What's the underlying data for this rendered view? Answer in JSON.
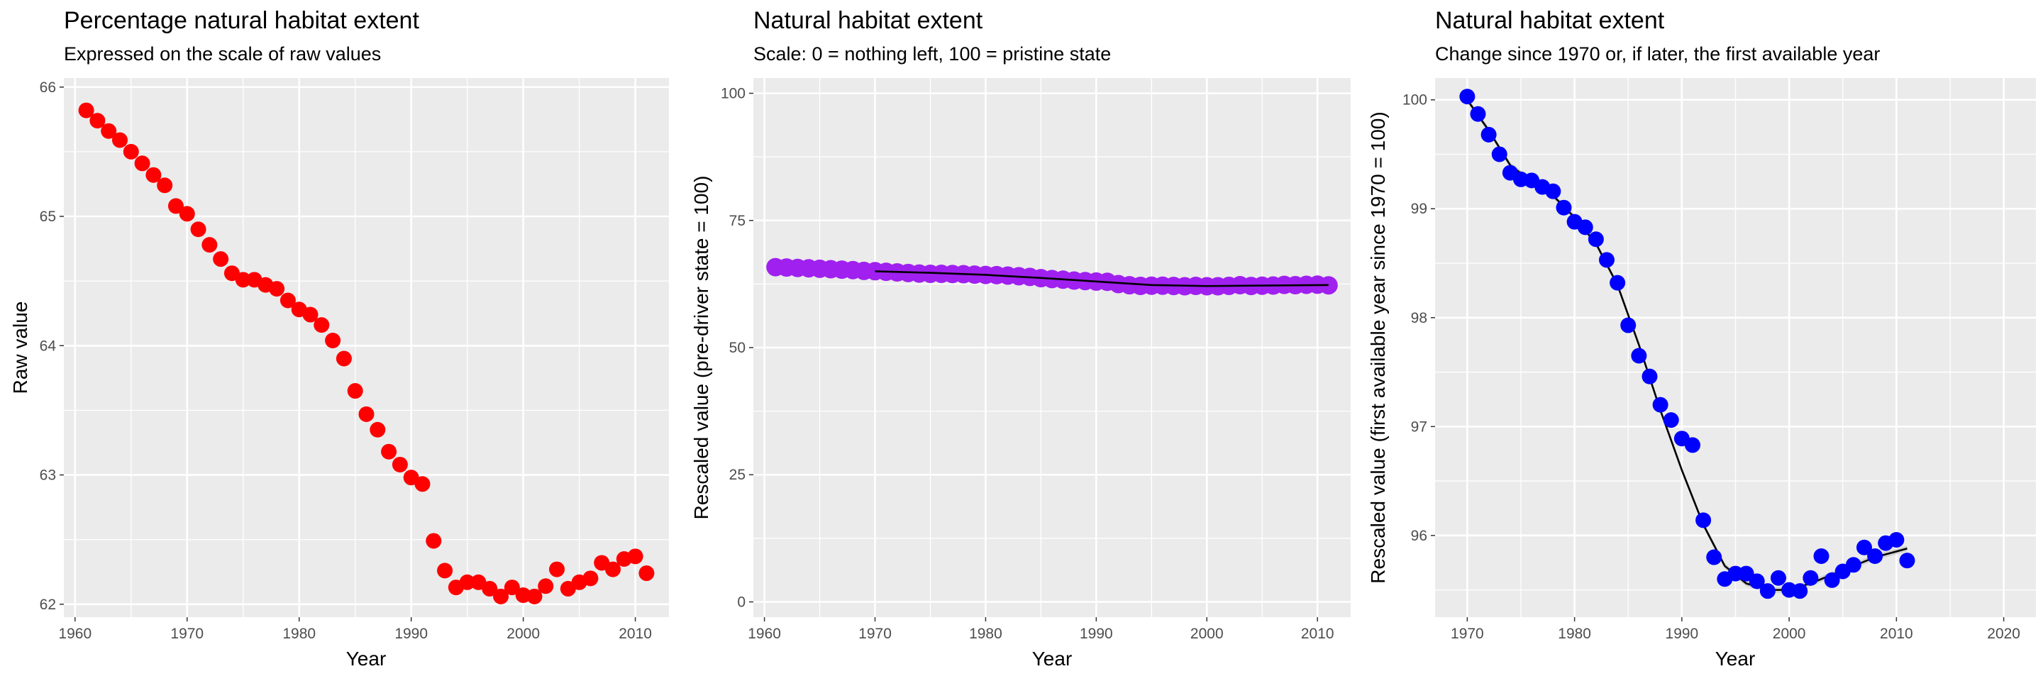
{
  "chart_data": [
    {
      "type": "scatter",
      "title": "Percentage natural habitat extent",
      "subtitle": "Expressed on the scale of raw values",
      "xlabel": "Year",
      "ylabel": "Raw value",
      "xlim": [
        1959,
        2013
      ],
      "ylim": [
        61.9,
        66.07
      ],
      "xticks": [
        1960,
        1970,
        1980,
        1990,
        2000,
        2010
      ],
      "yticks": [
        62,
        63,
        64,
        65,
        66
      ],
      "point_color": "#ff0000",
      "grid": true,
      "panel_background": "#ebebeb",
      "series": [
        {
          "x": [
            1961,
            1962,
            1963,
            1964,
            1965,
            1966,
            1967,
            1968,
            1969,
            1970,
            1971,
            1972,
            1973,
            1974,
            1975,
            1976,
            1977,
            1978,
            1979,
            1980,
            1981,
            1982,
            1983,
            1984,
            1985,
            1986,
            1987,
            1988,
            1989,
            1990,
            1991,
            1992,
            1993,
            1994,
            1995,
            1996,
            1997,
            1998,
            1999,
            2000,
            2001,
            2002,
            2003,
            2004,
            2005,
            2006,
            2007,
            2008,
            2009,
            2010,
            2011
          ],
          "y": [
            65.82,
            65.74,
            65.66,
            65.59,
            65.5,
            65.41,
            65.32,
            65.24,
            65.08,
            65.02,
            64.9,
            64.78,
            64.67,
            64.56,
            64.51,
            64.51,
            64.47,
            64.44,
            64.35,
            64.28,
            64.24,
            64.16,
            64.04,
            63.9,
            63.65,
            63.47,
            63.35,
            63.18,
            63.08,
            62.98,
            62.93,
            62.49,
            62.26,
            62.13,
            62.17,
            62.17,
            62.12,
            62.06,
            62.13,
            62.07,
            62.06,
            62.14,
            62.27,
            62.12,
            62.17,
            62.2,
            62.32,
            62.27,
            62.35,
            62.37,
            62.24
          ]
        }
      ]
    },
    {
      "type": "scatter",
      "title": "Natural habitat extent",
      "subtitle": "Scale: 0 = nothing left, 100 = pristine state",
      "xlabel": "Year",
      "ylabel": "Rescaled value (pre-driver state = 100)",
      "xlim": [
        1959,
        2013
      ],
      "ylim": [
        -3,
        103
      ],
      "xticks": [
        1960,
        1970,
        1980,
        1990,
        2000,
        2010
      ],
      "yticks": [
        0,
        25,
        50,
        75,
        100
      ],
      "point_color": "#a020f0",
      "trend_color": "#000000",
      "grid": true,
      "panel_background": "#ebebeb",
      "series": [
        {
          "x": [
            1961,
            1962,
            1963,
            1964,
            1965,
            1966,
            1967,
            1968,
            1969,
            1970,
            1971,
            1972,
            1973,
            1974,
            1975,
            1976,
            1977,
            1978,
            1979,
            1980,
            1981,
            1982,
            1983,
            1984,
            1985,
            1986,
            1987,
            1988,
            1989,
            1990,
            1991,
            1992,
            1993,
            1994,
            1995,
            1996,
            1997,
            1998,
            1999,
            2000,
            2001,
            2002,
            2003,
            2004,
            2005,
            2006,
            2007,
            2008,
            2009,
            2010,
            2011
          ],
          "y": [
            65.82,
            65.74,
            65.66,
            65.59,
            65.5,
            65.41,
            65.32,
            65.24,
            65.08,
            65.02,
            64.9,
            64.78,
            64.67,
            64.56,
            64.51,
            64.51,
            64.47,
            64.44,
            64.35,
            64.28,
            64.24,
            64.16,
            64.04,
            63.9,
            63.65,
            63.47,
            63.35,
            63.18,
            63.08,
            62.98,
            62.93,
            62.49,
            62.26,
            62.13,
            62.17,
            62.17,
            62.12,
            62.06,
            62.13,
            62.07,
            62.06,
            62.14,
            62.27,
            62.12,
            62.17,
            62.2,
            62.32,
            62.27,
            62.35,
            62.37,
            62.24
          ]
        }
      ],
      "trend": {
        "x": [
          1970,
          1975,
          1980,
          1985,
          1990,
          1995,
          2000,
          2005,
          2011
        ],
        "y": [
          65.0,
          64.7,
          64.3,
          63.7,
          63.0,
          62.3,
          62.1,
          62.2,
          62.3
        ]
      }
    },
    {
      "type": "scatter",
      "title": "Natural habitat extent",
      "subtitle": "Change since 1970 or, if later, the first available year",
      "xlabel": "Year",
      "ylabel": "Rescaled value (first available year since 1970 = 100)",
      "xlim": [
        1967,
        2023
      ],
      "ylim": [
        95.25,
        100.2
      ],
      "xticks": [
        1970,
        1980,
        1990,
        2000,
        2010,
        2020
      ],
      "yticks": [
        96,
        97,
        98,
        99,
        100
      ],
      "point_color": "#0000ff",
      "trend_color": "#000000",
      "grid": true,
      "panel_background": "#ebebeb",
      "series": [
        {
          "x": [
            1970,
            1971,
            1972,
            1973,
            1974,
            1975,
            1976,
            1977,
            1978,
            1979,
            1980,
            1981,
            1982,
            1983,
            1984,
            1985,
            1986,
            1987,
            1988,
            1989,
            1990,
            1991,
            1992,
            1993,
            1994,
            1995,
            1996,
            1997,
            1998,
            1999,
            2000,
            2001,
            2002,
            2003,
            2004,
            2005,
            2006,
            2007,
            2008,
            2009,
            2010,
            2011
          ],
          "y": [
            100.03,
            99.87,
            99.68,
            99.5,
            99.33,
            99.27,
            99.26,
            99.2,
            99.16,
            99.01,
            98.88,
            98.83,
            98.72,
            98.53,
            98.32,
            97.93,
            97.65,
            97.46,
            97.2,
            97.06,
            96.89,
            96.83,
            96.14,
            95.8,
            95.6,
            95.65,
            95.65,
            95.58,
            95.49,
            95.61,
            95.5,
            95.49,
            95.61,
            95.81,
            95.59,
            95.67,
            95.73,
            95.89,
            95.81,
            95.93,
            95.96,
            95.77
          ]
        }
      ],
      "trend": {
        "x": [
          1970,
          1972,
          1974,
          1976,
          1978,
          1980,
          1982,
          1984,
          1986,
          1988,
          1990,
          1992,
          1994,
          1996,
          1998,
          2000,
          2002,
          2004,
          2006,
          2008,
          2011
        ],
        "y": [
          100.0,
          99.72,
          99.4,
          99.25,
          99.12,
          98.92,
          98.68,
          98.3,
          97.75,
          97.15,
          96.6,
          96.1,
          95.72,
          95.56,
          95.5,
          95.5,
          95.56,
          95.64,
          95.72,
          95.8,
          95.88
        ]
      }
    }
  ]
}
